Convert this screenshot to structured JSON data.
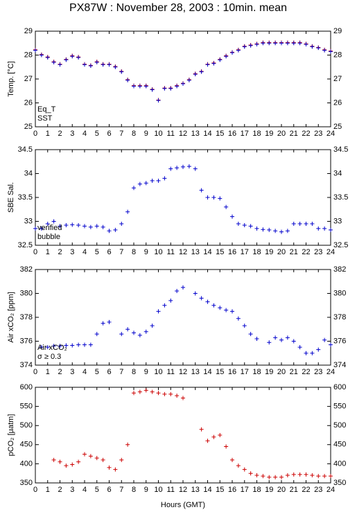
{
  "title": "PX87W : November 28, 2003 : 10min. mean",
  "x_label": "Hours (GMT)",
  "chart_data": [
    {
      "type": "scatter",
      "y_label": "Temp. [°C]",
      "xlim": [
        0,
        24
      ],
      "xticks": [
        0,
        1,
        2,
        3,
        4,
        5,
        6,
        7,
        8,
        9,
        10,
        11,
        12,
        13,
        14,
        15,
        16,
        17,
        18,
        19,
        20,
        21,
        22,
        23,
        24
      ],
      "ylim": [
        25,
        29
      ],
      "yticks": [
        25,
        26,
        27,
        28,
        29
      ],
      "x": [
        0,
        0.5,
        1,
        1.5,
        2,
        2.5,
        3,
        3.5,
        4,
        4.5,
        5,
        5.5,
        6,
        6.5,
        7,
        7.5,
        8,
        8.5,
        9,
        9.5,
        10,
        10.5,
        11,
        11.5,
        12,
        12.5,
        13,
        13.5,
        14,
        14.5,
        15,
        15.5,
        16,
        16.5,
        17,
        17.5,
        18,
        18.5,
        19,
        19.5,
        20,
        20.5,
        21,
        21.5,
        22,
        22.5,
        23,
        23.5,
        24
      ],
      "series": [
        {
          "name": "Eq_T",
          "color": "#cc0000",
          "values": [
            28.22,
            28.02,
            27.92,
            27.72,
            27.62,
            27.82,
            27.97,
            27.92,
            27.62,
            27.57,
            27.72,
            27.62,
            27.62,
            27.52,
            27.32,
            26.97,
            26.72,
            26.72,
            26.72,
            26.57,
            26.12,
            26.62,
            26.62,
            26.72,
            26.82,
            26.97,
            27.22,
            27.32,
            27.62,
            27.67,
            27.82,
            27.97,
            28.12,
            28.22,
            28.37,
            28.42,
            28.47,
            28.52,
            28.52,
            28.52,
            28.52,
            28.52,
            28.52,
            28.52,
            28.47,
            28.37,
            28.32,
            28.22,
            28.17
          ]
        },
        {
          "name": "SST",
          "color": "#0000cc",
          "values": [
            28.2,
            28.0,
            27.9,
            27.7,
            27.6,
            27.8,
            27.95,
            27.9,
            27.6,
            27.55,
            27.7,
            27.6,
            27.6,
            27.5,
            27.3,
            26.95,
            26.7,
            26.7,
            26.7,
            26.55,
            26.1,
            26.6,
            26.6,
            26.7,
            26.8,
            26.95,
            27.2,
            27.3,
            27.6,
            27.65,
            27.8,
            27.95,
            28.1,
            28.2,
            28.35,
            28.4,
            28.45,
            28.5,
            28.5,
            28.5,
            28.5,
            28.5,
            28.5,
            28.5,
            28.45,
            28.35,
            28.3,
            28.2,
            28.15
          ]
        }
      ]
    },
    {
      "type": "scatter",
      "y_label": "SBE Sal.",
      "xlim": [
        0,
        24
      ],
      "xticks": [
        0,
        1,
        2,
        3,
        4,
        5,
        6,
        7,
        8,
        9,
        10,
        11,
        12,
        13,
        14,
        15,
        16,
        17,
        18,
        19,
        20,
        21,
        22,
        23,
        24
      ],
      "ylim": [
        32.5,
        34.5
      ],
      "yticks": [
        32.5,
        33,
        33.5,
        34,
        34.5
      ],
      "x": [
        0,
        0.5,
        1,
        1.5,
        2,
        2.5,
        3,
        3.5,
        4,
        4.5,
        5,
        5.5,
        6,
        6.5,
        7,
        7.5,
        8,
        8.5,
        9,
        9.5,
        10,
        10.5,
        11,
        11.5,
        12,
        12.5,
        13,
        13.5,
        14,
        14.5,
        15,
        15.5,
        16,
        16.5,
        17,
        17.5,
        18,
        18.5,
        19,
        19.5,
        20,
        20.5,
        21,
        21.5,
        22,
        22.5,
        23,
        23.5,
        24
      ],
      "series": [
        {
          "name": "verified",
          "color": "#0000cc",
          "values": [
            32.85,
            32.85,
            32.95,
            33.0,
            32.9,
            32.92,
            32.93,
            32.92,
            32.9,
            32.88,
            32.9,
            32.88,
            32.8,
            32.82,
            32.95,
            33.2,
            33.7,
            33.78,
            33.8,
            33.85,
            33.85,
            33.9,
            34.1,
            34.12,
            34.14,
            34.15,
            34.1,
            33.65,
            33.5,
            33.5,
            33.48,
            33.3,
            33.1,
            32.95,
            32.92,
            32.9,
            32.85,
            32.83,
            32.82,
            32.8,
            32.78,
            32.8,
            32.95,
            32.95,
            32.95,
            32.95,
            32.85,
            32.85,
            32.82
          ]
        }
      ],
      "annotations": [
        {
          "text": "bubble",
          "color": "#cc00cc"
        }
      ]
    },
    {
      "type": "scatter",
      "y_label": "Air xCO₂ [ppm]",
      "xlim": [
        0,
        24
      ],
      "xticks": [
        0,
        1,
        2,
        3,
        4,
        5,
        6,
        7,
        8,
        9,
        10,
        11,
        12,
        13,
        14,
        15,
        16,
        17,
        18,
        19,
        20,
        21,
        22,
        23,
        24
      ],
      "ylim": [
        374,
        382
      ],
      "yticks": [
        374,
        376,
        378,
        380,
        382
      ],
      "x": [
        0,
        0.5,
        1,
        1.5,
        2,
        2.5,
        3,
        3.5,
        4,
        4.5,
        5,
        5.5,
        6,
        6.5,
        7,
        7.5,
        8,
        8.5,
        9,
        9.5,
        10,
        10.5,
        11,
        11.5,
        12,
        12.5,
        13,
        13.5,
        14,
        14.5,
        15,
        15.5,
        16,
        16.5,
        17,
        17.5,
        18,
        18.5,
        19,
        19.5,
        20,
        20.5,
        21,
        21.5,
        22,
        22.5,
        23,
        23.5,
        24
      ],
      "series": [
        {
          "name": "Air xCO₂",
          "color": "#0000cc",
          "values": [
            null,
            375.5,
            375.5,
            375.6,
            375.6,
            375.65,
            375.65,
            375.7,
            375.7,
            375.7,
            376.6,
            377.5,
            377.6,
            null,
            376.6,
            377.0,
            376.7,
            376.5,
            376.8,
            377.3,
            378.5,
            379.0,
            379.4,
            380.2,
            380.5,
            null,
            380.0,
            379.6,
            379.3,
            379.0,
            378.8,
            378.6,
            378.5,
            377.9,
            377.3,
            376.6,
            376.2,
            null,
            375.9,
            376.3,
            376.1,
            376.3,
            376.0,
            375.5,
            375.0,
            375.0,
            375.3,
            376.1,
            375.7
          ]
        }
      ],
      "annotations": [
        {
          "text": "σ ≥ 0.3",
          "color": "#cc00cc"
        }
      ]
    },
    {
      "type": "scatter",
      "y_label": "pCO₂ [µatm]",
      "xlim": [
        0,
        24
      ],
      "xticks": [
        0,
        1,
        2,
        3,
        4,
        5,
        6,
        7,
        8,
        9,
        10,
        11,
        12,
        13,
        14,
        15,
        16,
        17,
        18,
        19,
        20,
        21,
        22,
        23,
        24
      ],
      "ylim": [
        350,
        600
      ],
      "yticks": [
        350,
        400,
        450,
        500,
        550,
        600
      ],
      "x": [
        0,
        0.5,
        1,
        1.5,
        2,
        2.5,
        3,
        3.5,
        4,
        4.5,
        5,
        5.5,
        6,
        6.5,
        7,
        7.5,
        8,
        8.5,
        9,
        9.5,
        10,
        10.5,
        11,
        11.5,
        12,
        12.5,
        13,
        13.5,
        14,
        14.5,
        15,
        15.5,
        16,
        16.5,
        17,
        17.5,
        18,
        18.5,
        19,
        19.5,
        20,
        20.5,
        21,
        21.5,
        22,
        22.5,
        23,
        23.5,
        24
      ],
      "series": [
        {
          "name": "pCO₂",
          "color": "#cc0000",
          "values": [
            null,
            null,
            null,
            410,
            405,
            395,
            398,
            405,
            425,
            420,
            415,
            410,
            390,
            385,
            410,
            450,
            585,
            588,
            592,
            588,
            585,
            582,
            582,
            578,
            572,
            null,
            null,
            490,
            460,
            470,
            475,
            445,
            410,
            395,
            385,
            375,
            370,
            368,
            365,
            365,
            365,
            370,
            372,
            372,
            372,
            370,
            368,
            368,
            368
          ]
        }
      ]
    }
  ]
}
